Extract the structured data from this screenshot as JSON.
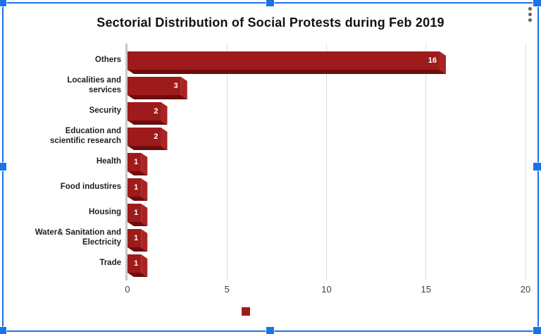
{
  "menu": {
    "kebab_icon": "vertical-three-dot-menu"
  },
  "selection": {
    "handle_color": "#1a73e8",
    "border_color": "#1a73e8"
  },
  "chart_data": {
    "type": "bar",
    "orientation": "horizontal",
    "title": "Sectorial Distribution of Social Protests during Feb 2019",
    "categories": [
      "Others",
      "Localities and services",
      "Security",
      "Education and scientific research",
      "Health",
      "Food industires",
      "Housing",
      "Water& Sanitation and Electricity",
      "Trade"
    ],
    "category_lines": [
      [
        "Others"
      ],
      [
        "Localities and",
        "services"
      ],
      [
        "Security"
      ],
      [
        "Education and",
        "scientific research"
      ],
      [
        "Health"
      ],
      [
        "Food industires"
      ],
      [
        "Housing"
      ],
      [
        "Water& Sanitation and",
        "Electricity"
      ],
      [
        "Trade"
      ]
    ],
    "values": [
      16,
      3,
      2,
      2,
      1,
      1,
      1,
      1,
      1
    ],
    "xlabel": "",
    "ylabel": "",
    "xlim": [
      0,
      20
    ],
    "x_ticks": [
      0,
      5,
      10,
      15,
      20
    ],
    "grid": true,
    "legend_position": "bottom-center",
    "legend_label": "",
    "bar_style": "3d",
    "colors": {
      "bar_face": "#9e1b1b",
      "bar_side": "#ab2424",
      "bar_bottom": "#6e0d0d",
      "gridline": "#dcdcdc",
      "baseline": "#c8c8c8",
      "value_label": "#ffffff",
      "title": "#111111",
      "axis_label": "#3c4043"
    }
  }
}
